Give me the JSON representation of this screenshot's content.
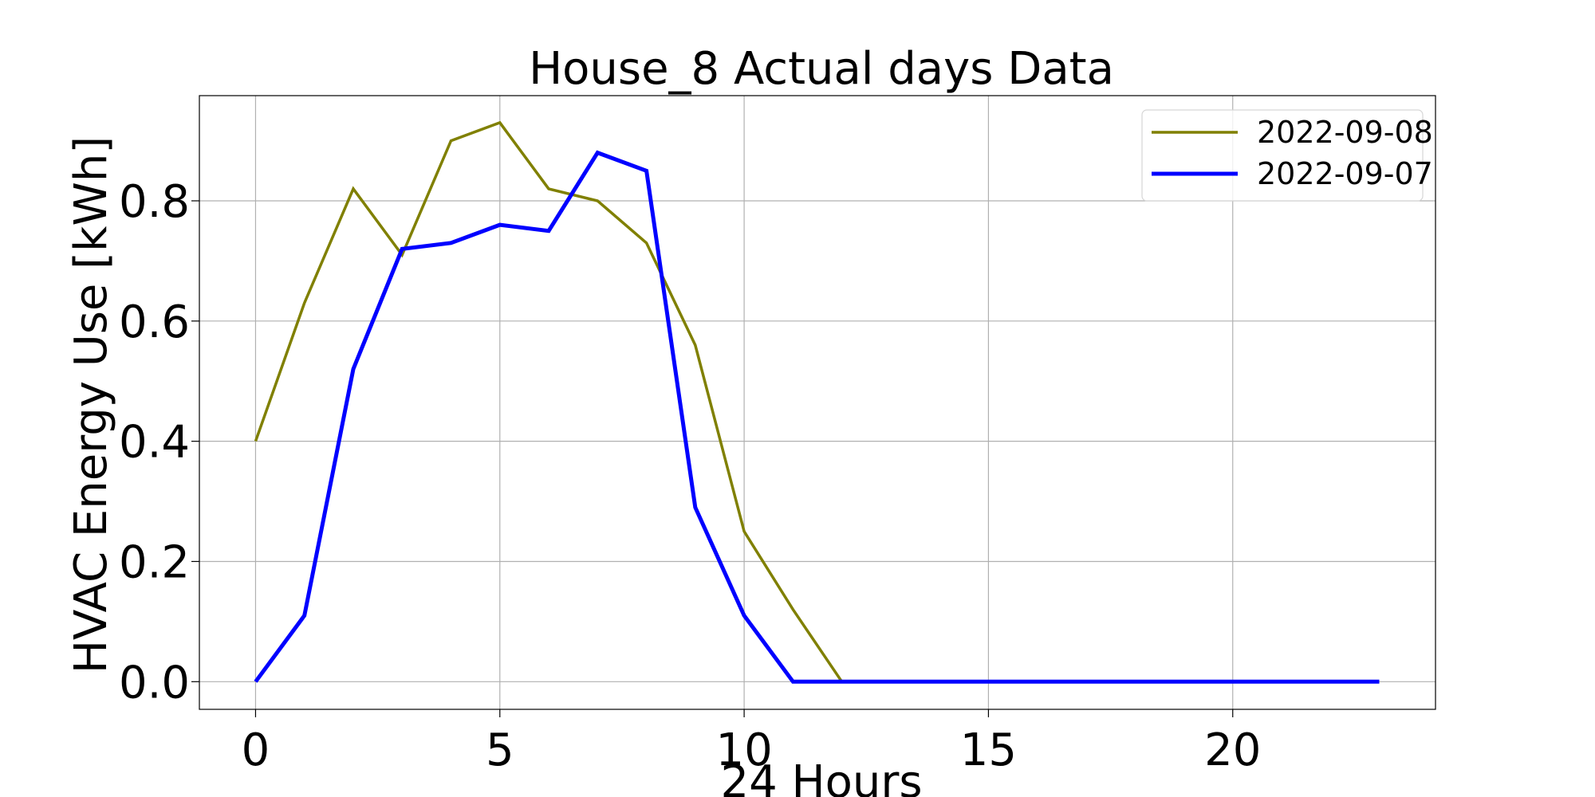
{
  "chart_data": {
    "type": "line",
    "title": "House_8  Actual days Data",
    "xlabel": "24 Hours",
    "ylabel": "HVAC Energy Use [kWh]",
    "xlim": [
      -1.15,
      24.15
    ],
    "ylim": [
      -0.046,
      0.975
    ],
    "xticks": [
      0,
      5,
      10,
      15,
      20
    ],
    "xtick_labels": [
      "0",
      "5",
      "10",
      "15",
      "20"
    ],
    "yticks": [
      0.0,
      0.2,
      0.4,
      0.6,
      0.8
    ],
    "ytick_labels": [
      "0.0",
      "0.2",
      "0.4",
      "0.6",
      "0.8"
    ],
    "grid": true,
    "legend_position": "top-right",
    "x": [
      0,
      1,
      2,
      3,
      4,
      5,
      6,
      7,
      8,
      9,
      10,
      11,
      12,
      13,
      14,
      15,
      16,
      17,
      18,
      19,
      20,
      21,
      22,
      23
    ],
    "series": [
      {
        "name": "2022-09-08",
        "color": "#808000",
        "values": [
          0.4,
          0.63,
          0.82,
          0.71,
          0.9,
          0.93,
          0.82,
          0.8,
          0.73,
          0.56,
          0.25,
          0.12,
          0.0,
          null,
          null,
          null,
          null,
          null,
          null,
          null,
          null,
          null,
          null,
          null
        ]
      },
      {
        "name": "2022-09-07",
        "color": "#0000ff",
        "values": [
          0.0,
          0.11,
          0.52,
          0.72,
          0.73,
          0.76,
          0.75,
          0.88,
          0.85,
          0.29,
          0.11,
          0.0,
          0.0,
          0.0,
          0.0,
          0.0,
          0.0,
          0.0,
          0.0,
          0.0,
          0.0,
          0.0,
          0.0,
          0.0
        ]
      }
    ]
  }
}
